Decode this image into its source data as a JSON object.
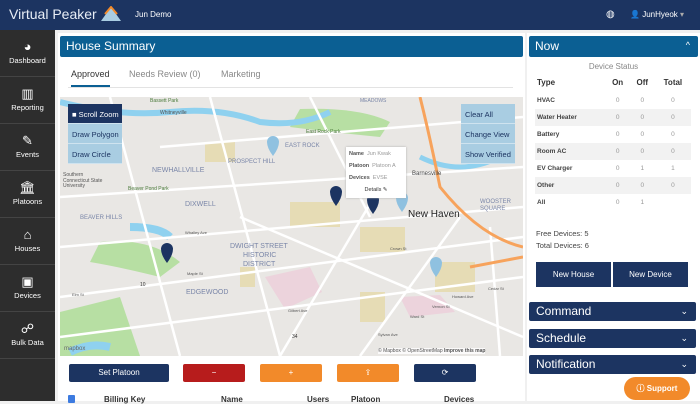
{
  "header": {
    "brand": "Virtual Peaker",
    "org": "Jun Demo",
    "user": "JunHyeok",
    "user_caret": "▾",
    "globe_icon": "globe-icon"
  },
  "sidebar": {
    "items": [
      {
        "label": "Dashboard",
        "icon": "◕"
      },
      {
        "label": "Reporting",
        "icon": "▥"
      },
      {
        "label": "Events",
        "icon": "✎"
      },
      {
        "label": "Platoons",
        "icon": "🏛"
      },
      {
        "label": "Houses",
        "icon": "⌂"
      },
      {
        "label": "Devices",
        "icon": "▣"
      },
      {
        "label": "Bulk Data",
        "icon": "☍"
      }
    ]
  },
  "main": {
    "title": "House Summary",
    "tabs": [
      "Approved",
      "Needs Review (0)",
      "Marketing"
    ],
    "map": {
      "left_buttons": [
        "Scroll Zoom",
        "Draw Polygon",
        "Draw Circle"
      ],
      "scroll_zoom_box": "■",
      "right_buttons": [
        "Clear All",
        "Change View",
        "Show Verified"
      ],
      "popup": {
        "name_label": "Name",
        "name": "Jun Kwak",
        "platoon_label": "Platoon",
        "platoon": "Platoon A",
        "devices_label": "Devices",
        "devices": "EVSE",
        "details": "Details ✎"
      },
      "labels": [
        "NEWHALLVILLE",
        "PROSPECT HILL",
        "EAST ROCK",
        "DIXWELL",
        "BEAVER HILLS",
        "DWIGHT STREET",
        "HISTORIC",
        "DISTRICT",
        "EDGEWOOD",
        "New Haven",
        "Barnesville",
        "WOOSTER SQUARE",
        "Beaver Pond Park",
        "East Rock Park",
        "Southern Connecticut State University",
        "Whitneyville",
        "Bassett Park",
        "MEADOWS",
        "Whalley Ave",
        "Maple St",
        "Elm St",
        "Gilbert Ave",
        "Howard Ave",
        "Ward St",
        "Vernon St",
        "Cedar St",
        "Crown St",
        "Sylvan Ave",
        "10",
        "34"
      ],
      "attribution": "© Mapbox © OpenStreetMap",
      "improve": "Improve this map",
      "mapbox_logo": "mapbox"
    },
    "buttons": {
      "set_platoon": "Set Platoon",
      "remove": "−",
      "add": "+",
      "upload": "⇪",
      "refresh": "⟳"
    },
    "table_headers": [
      "Billing Key",
      "Name",
      "Users",
      "Platoon",
      "Devices"
    ]
  },
  "now": {
    "title": "Now",
    "caret": "^",
    "subtitle": "Device Status",
    "columns": [
      "Type",
      "On",
      "Off",
      "Total"
    ],
    "rows": [
      [
        "HVAC",
        "0",
        "0",
        "0"
      ],
      [
        "Water Heater",
        "0",
        "0",
        "0"
      ],
      [
        "Battery",
        "0",
        "0",
        "0"
      ],
      [
        "Room AC",
        "0",
        "0",
        "0"
      ],
      [
        "EV Charger",
        "0",
        "1",
        "1"
      ],
      [
        "Other",
        "0",
        "0",
        "0"
      ],
      [
        "All",
        "0",
        "1",
        ""
      ]
    ],
    "free_devices": "Free Devices: 5",
    "total_devices": "Total Devices: 6",
    "new_house": "New House",
    "new_device": "New Device"
  },
  "accordions": [
    {
      "title": "Command",
      "caret": "⌄"
    },
    {
      "title": "Schedule",
      "caret": "⌄"
    },
    {
      "title": "Notification",
      "caret": "⌄"
    }
  ],
  "support": "Support",
  "colors": {
    "header": "#1c3461",
    "title_bar": "#0b5f93",
    "danger": "#b71c1c",
    "orange": "#f28a2a"
  }
}
